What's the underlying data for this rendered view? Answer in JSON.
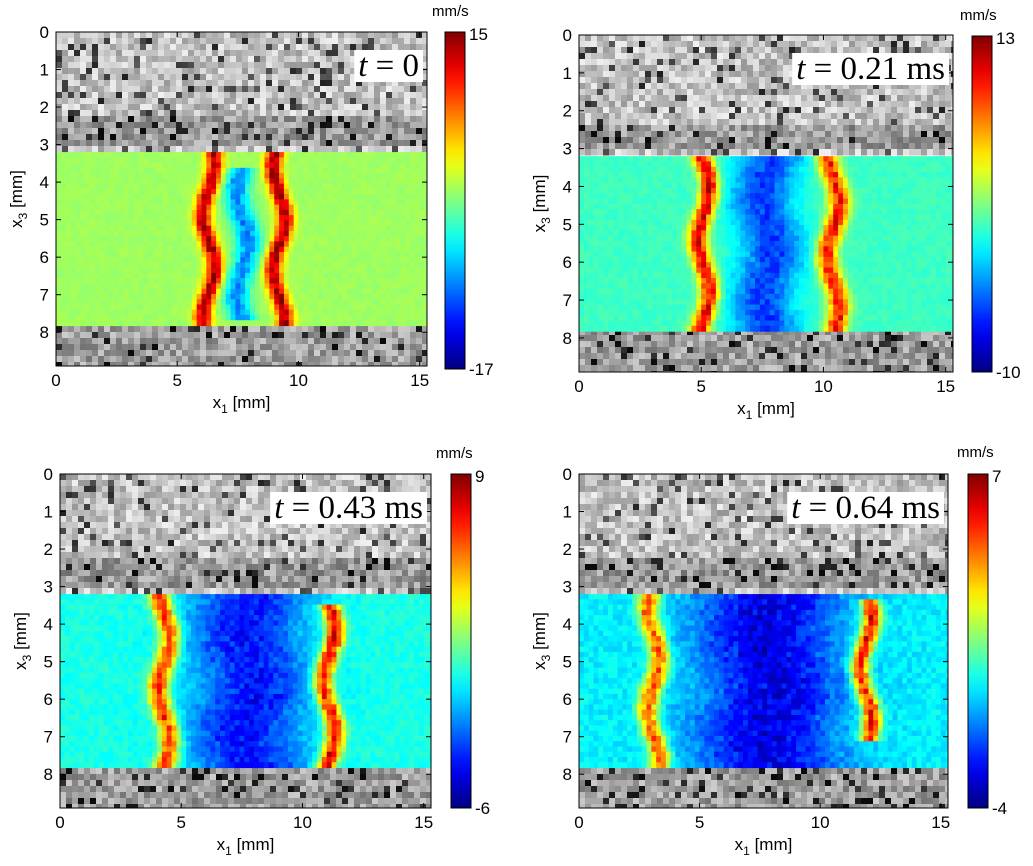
{
  "chart_data": [
    {
      "type": "heatmap",
      "annotation": {
        "var": "t",
        "eq": "= 0",
        "unit": ""
      },
      "xlabel": "x",
      "xlabel_sub": "1",
      "xlabel_unit": "[mm]",
      "ylabel": "x",
      "ylabel_sub": "3",
      "ylabel_unit": "[mm]",
      "xlim": [
        0,
        15.3
      ],
      "ylim": [
        0,
        8.9
      ],
      "xticks": [
        0,
        5,
        10,
        15
      ],
      "yticks": [
        0,
        1,
        2,
        3,
        4,
        5,
        6,
        7,
        8
      ],
      "colorbar": {
        "unit": "mm/s",
        "max": 15,
        "min": -17,
        "colormap": "jet"
      },
      "overlay_band_mm": [
        3.2,
        7.7
      ],
      "background": "grayscale ultrasound speckle",
      "features": [
        {
          "x": 6.2,
          "width": 0.45,
          "peak": 14,
          "y_range": [
            3.2,
            7.7
          ]
        },
        {
          "x": 9.1,
          "width": 0.45,
          "peak": 14,
          "y_range": [
            3.2,
            7.7
          ]
        },
        {
          "x": 7.6,
          "width": 0.4,
          "peak": -9,
          "y_range": [
            3.6,
            7.5
          ]
        }
      ]
    },
    {
      "type": "heatmap",
      "annotation": {
        "var": "t",
        "eq": "= 0.21",
        "unit": "ms"
      },
      "xlabel": "x",
      "xlabel_sub": "1",
      "xlabel_unit": "[mm]",
      "ylabel": "x",
      "ylabel_sub": "3",
      "ylabel_unit": "[mm]",
      "xlim": [
        0,
        15.3
      ],
      "ylim": [
        0,
        8.9
      ],
      "xticks": [
        0,
        5,
        10,
        15
      ],
      "yticks": [
        0,
        1,
        2,
        3,
        4,
        5,
        6,
        7,
        8
      ],
      "colorbar": {
        "unit": "mm/s",
        "max": 13,
        "min": -10,
        "colormap": "jet"
      },
      "overlay_band_mm": [
        3.2,
        7.7
      ],
      "background": "grayscale ultrasound speckle",
      "features": [
        {
          "x": 5.0,
          "width": 0.5,
          "peak": 11,
          "y_range": [
            3.2,
            7.7
          ]
        },
        {
          "x": 10.3,
          "width": 0.55,
          "peak": 10,
          "y_range": [
            3.3,
            7.6
          ]
        },
        {
          "x": 7.6,
          "width": 1.0,
          "peak": -6,
          "y_range": [
            3.3,
            7.7
          ]
        }
      ]
    },
    {
      "type": "heatmap",
      "annotation": {
        "var": "t",
        "eq": "= 0.43",
        "unit": "ms"
      },
      "xlabel": "x",
      "xlabel_sub": "1",
      "xlabel_unit": "[mm]",
      "ylabel": "x",
      "ylabel_sub": "3",
      "ylabel_unit": "[mm]",
      "xlim": [
        0,
        15.3
      ],
      "ylim": [
        0,
        8.9
      ],
      "xticks": [
        0,
        5,
        10,
        15
      ],
      "yticks": [
        0,
        1,
        2,
        3,
        4,
        5,
        6,
        7,
        8
      ],
      "colorbar": {
        "unit": "mm/s",
        "max": 9,
        "min": -6,
        "colormap": "jet"
      },
      "overlay_band_mm": [
        3.2,
        7.7
      ],
      "background": "grayscale ultrasound speckle",
      "features": [
        {
          "x": 4.2,
          "width": 0.55,
          "peak": 7,
          "y_range": [
            3.2,
            7.7
          ]
        },
        {
          "x": 11.0,
          "width": 0.5,
          "peak": 8,
          "y_range": [
            3.5,
            7.6
          ]
        },
        {
          "x": 7.7,
          "width": 1.9,
          "peak": -4,
          "y_range": [
            3.2,
            7.7
          ]
        }
      ]
    },
    {
      "type": "heatmap",
      "annotation": {
        "var": "t",
        "eq": "= 0.64",
        "unit": "ms"
      },
      "xlabel": "x",
      "xlabel_sub": "1",
      "xlabel_unit": "[mm]",
      "ylabel": "x",
      "ylabel_sub": "3",
      "ylabel_unit": "[mm]",
      "xlim": [
        0,
        15.3
      ],
      "ylim": [
        0,
        8.9
      ],
      "xticks": [
        0,
        5,
        10,
        15
      ],
      "yticks": [
        0,
        1,
        2,
        3,
        4,
        5,
        6,
        7,
        8
      ],
      "colorbar": {
        "unit": "mm/s",
        "max": 7,
        "min": -4,
        "colormap": "jet"
      },
      "overlay_band_mm": [
        3.2,
        7.7
      ],
      "background": "grayscale ultrasound speckle",
      "features": [
        {
          "x": 3.0,
          "width": 0.55,
          "peak": 5,
          "y_range": [
            3.2,
            7.6
          ]
        },
        {
          "x": 11.8,
          "width": 0.5,
          "peak": 6,
          "y_range": [
            3.4,
            6.9
          ]
        },
        {
          "x": 7.8,
          "width": 2.3,
          "peak": -3,
          "y_range": [
            3.2,
            7.7
          ]
        }
      ]
    }
  ]
}
